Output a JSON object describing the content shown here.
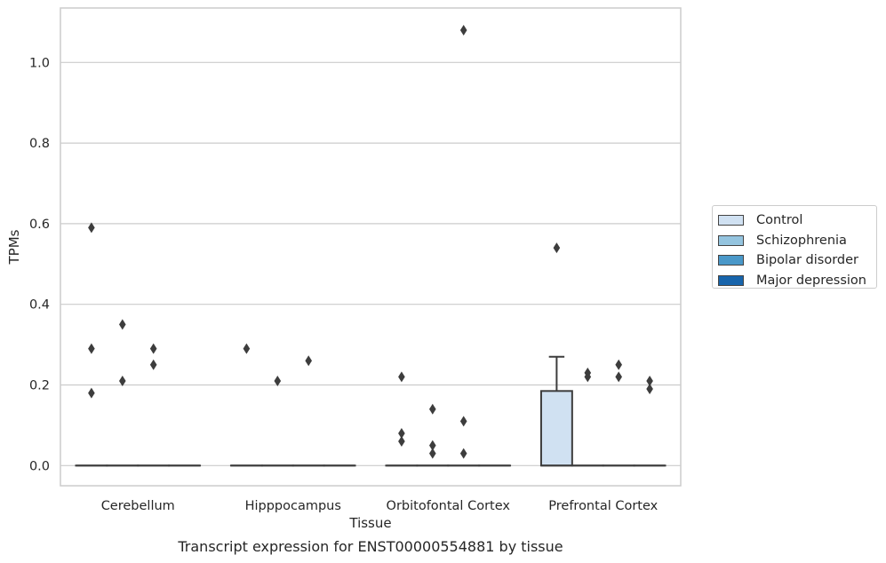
{
  "chart_data": {
    "type": "box",
    "categories": [
      "Cerebellum",
      "Hipppocampus",
      "Orbitofontal Cortex",
      "Prefrontal Cortex"
    ],
    "hue_order": [
      "Control",
      "Schizophrenia",
      "Bipolar disorder",
      "Major depression"
    ],
    "colors": {
      "Control": "#d0e1f2",
      "Schizophrenia": "#94c4df",
      "Bipolar disorder": "#4a98c9",
      "Major depression": "#1764ab"
    },
    "xlabel": "Tissue",
    "ylabel": "TPMs",
    "caption": "Transcript expression for ENST00000554881 by tissue",
    "ylim": [
      -0.05,
      1.135
    ],
    "yticks": [
      "0.0",
      "0.2",
      "0.4",
      "0.6",
      "0.8",
      "1.0"
    ],
    "grid": true,
    "legend_position": "right",
    "series": [
      {
        "name": "Control",
        "boxes": [
          {
            "category": "Cerebellum",
            "q1": 0,
            "median": 0,
            "q3": 0,
            "whisker_low": 0,
            "whisker_high": 0,
            "outliers": [
              0.59,
              0.29,
              0.18
            ]
          },
          {
            "category": "Hipppocampus",
            "q1": 0,
            "median": 0,
            "q3": 0,
            "whisker_low": 0,
            "whisker_high": 0,
            "outliers": [
              0.29
            ]
          },
          {
            "category": "Orbitofontal Cortex",
            "q1": 0,
            "median": 0,
            "q3": 0,
            "whisker_low": 0,
            "whisker_high": 0,
            "outliers": [
              0.22,
              0.08,
              0.06
            ]
          },
          {
            "category": "Prefrontal Cortex",
            "q1": 0,
            "median": 0,
            "q3": 0.185,
            "whisker_low": 0,
            "whisker_high": 0.27,
            "outliers": [
              0.54
            ]
          }
        ]
      },
      {
        "name": "Schizophrenia",
        "boxes": [
          {
            "category": "Cerebellum",
            "q1": 0,
            "median": 0,
            "q3": 0,
            "whisker_low": 0,
            "whisker_high": 0,
            "outliers": [
              0.35,
              0.21
            ]
          },
          {
            "category": "Hipppocampus",
            "q1": 0,
            "median": 0,
            "q3": 0,
            "whisker_low": 0,
            "whisker_high": 0,
            "outliers": [
              0.21
            ]
          },
          {
            "category": "Orbitofontal Cortex",
            "q1": 0,
            "median": 0,
            "q3": 0,
            "whisker_low": 0,
            "whisker_high": 0,
            "outliers": [
              0.14,
              0.05,
              0.03
            ]
          },
          {
            "category": "Prefrontal Cortex",
            "q1": 0,
            "median": 0,
            "q3": 0,
            "whisker_low": 0,
            "whisker_high": 0,
            "outliers": [
              0.23,
              0.22
            ]
          }
        ]
      },
      {
        "name": "Bipolar disorder",
        "boxes": [
          {
            "category": "Cerebellum",
            "q1": 0,
            "median": 0,
            "q3": 0,
            "whisker_low": 0,
            "whisker_high": 0,
            "outliers": [
              0.29,
              0.25
            ]
          },
          {
            "category": "Hipppocampus",
            "q1": 0,
            "median": 0,
            "q3": 0,
            "whisker_low": 0,
            "whisker_high": 0,
            "outliers": [
              0.26
            ]
          },
          {
            "category": "Orbitofontal Cortex",
            "q1": 0,
            "median": 0,
            "q3": 0,
            "whisker_low": 0,
            "whisker_high": 0,
            "outliers": [
              1.08,
              0.11,
              0.03
            ]
          },
          {
            "category": "Prefrontal Cortex",
            "q1": 0,
            "median": 0,
            "q3": 0,
            "whisker_low": 0,
            "whisker_high": 0,
            "outliers": [
              0.25,
              0.22
            ]
          }
        ]
      },
      {
        "name": "Major depression",
        "boxes": [
          {
            "category": "Cerebellum",
            "q1": 0,
            "median": 0,
            "q3": 0,
            "whisker_low": 0,
            "whisker_high": 0,
            "outliers": []
          },
          {
            "category": "Hipppocampus",
            "q1": 0,
            "median": 0,
            "q3": 0,
            "whisker_low": 0,
            "whisker_high": 0,
            "outliers": []
          },
          {
            "category": "Orbitofontal Cortex",
            "q1": 0,
            "median": 0,
            "q3": 0,
            "whisker_low": 0,
            "whisker_high": 0,
            "outliers": []
          },
          {
            "category": "Prefrontal Cortex",
            "q1": 0,
            "median": 0,
            "q3": 0,
            "whisker_low": 0,
            "whisker_high": 0,
            "outliers": [
              0.21,
              0.19
            ]
          }
        ]
      }
    ]
  }
}
